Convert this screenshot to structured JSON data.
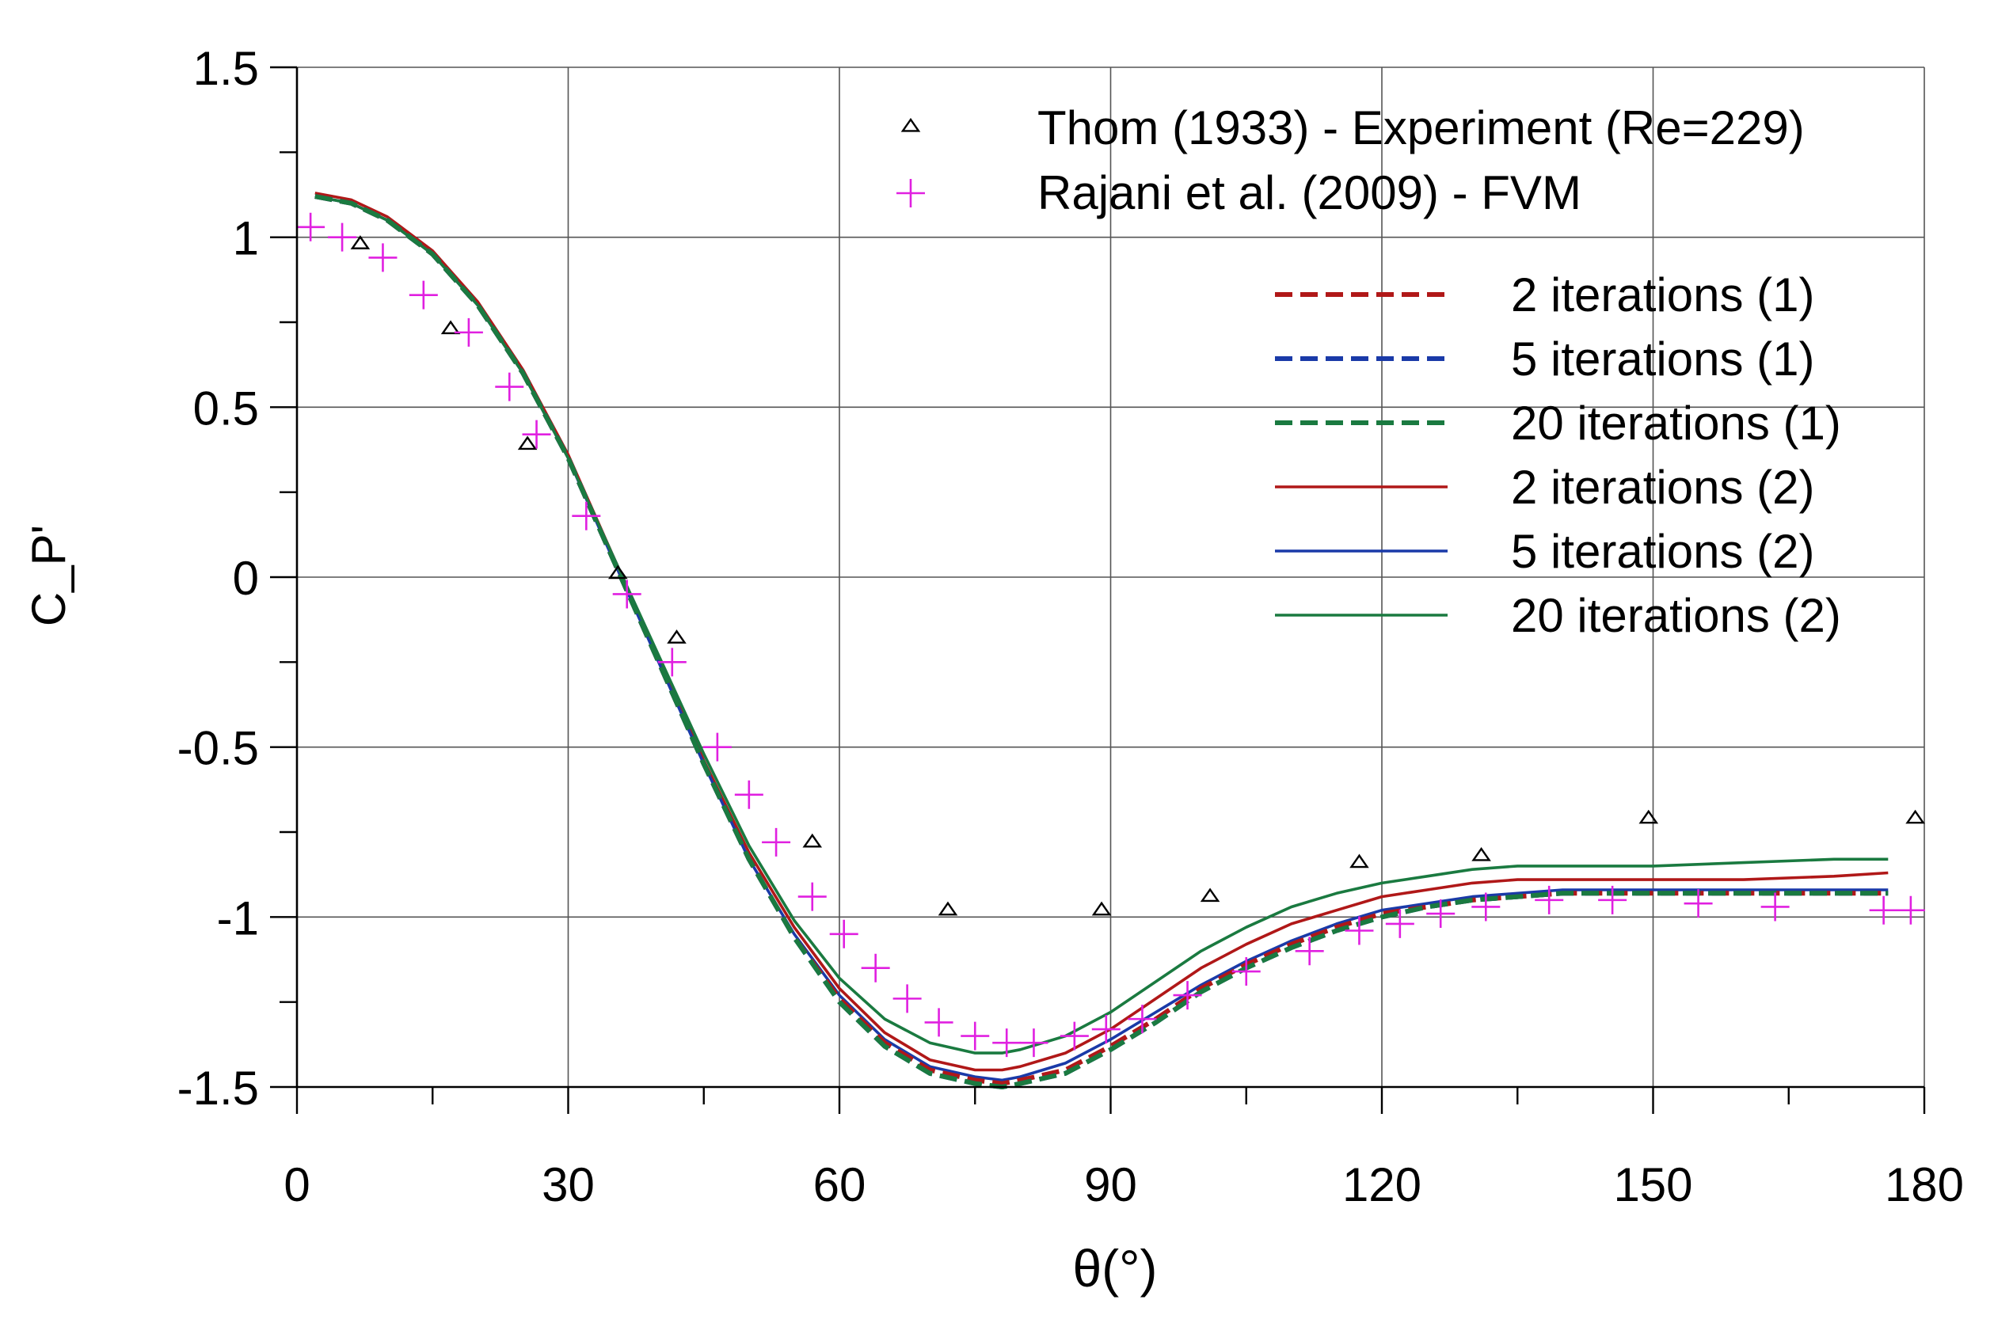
{
  "chart_data": {
    "type": "line",
    "title": "",
    "xlabel": "θ(°)",
    "ylabel": "C_P'",
    "xlim": [
      0,
      180
    ],
    "ylim": [
      -1.5,
      1.5
    ],
    "xticks": [
      0,
      30,
      60,
      90,
      120,
      150,
      180
    ],
    "yticks": [
      1.5,
      1,
      0.5,
      0,
      -0.5,
      -1,
      -1.5
    ],
    "xtick_labels": [
      "0",
      "30",
      "60",
      "90",
      "120",
      "150",
      "180"
    ],
    "ytick_labels": [
      "1.5",
      "1",
      "0.5",
      "0",
      "-0.5",
      "-1",
      "-1.5"
    ],
    "grid": true,
    "legend_location": "top-right",
    "series": [
      {
        "name": "Thom (1933) - Experiment (Re=229)",
        "kind": "marker",
        "marker": "triangle",
        "color": "#000000",
        "x": [
          7,
          17,
          25.5,
          35.5,
          42,
          57,
          72,
          89,
          101,
          117.5,
          131,
          149.5,
          179
        ],
        "y": [
          0.98,
          0.73,
          0.39,
          0.01,
          -0.18,
          -0.78,
          -0.98,
          -0.98,
          -0.94,
          -0.84,
          -0.82,
          -0.71,
          -0.71
        ]
      },
      {
        "name": "Rajani et al. (2009) - FVM",
        "kind": "marker",
        "marker": "plus",
        "color": "#e020e0",
        "x": [
          1.5,
          5,
          9.5,
          14,
          19,
          23.5,
          26.5,
          32,
          36.5,
          41.5,
          46.5,
          50,
          53,
          57,
          60.5,
          64,
          67.5,
          71,
          75,
          78.5,
          81.5,
          86,
          89.5,
          93.5,
          98.5,
          105,
          112,
          117.5,
          122,
          126.5,
          131.5,
          138.5,
          145.5,
          155,
          163.5,
          175.5,
          178.5
        ],
        "y": [
          1.03,
          1.0,
          0.94,
          0.83,
          0.72,
          0.56,
          0.42,
          0.18,
          -0.05,
          -0.25,
          -0.5,
          -0.64,
          -0.78,
          -0.94,
          -1.05,
          -1.15,
          -1.24,
          -1.31,
          -1.35,
          -1.37,
          -1.37,
          -1.35,
          -1.33,
          -1.3,
          -1.23,
          -1.16,
          -1.1,
          -1.04,
          -1.02,
          -0.99,
          -0.97,
          -0.95,
          -0.95,
          -0.96,
          -0.97,
          -0.98,
          -0.98
        ]
      },
      {
        "name": "2 iterations (1)",
        "kind": "line",
        "dash": true,
        "color": "#b01818",
        "x": [
          2,
          6,
          10,
          15,
          20,
          25,
          30,
          35,
          40,
          45,
          50,
          55,
          60,
          65,
          70,
          75,
          78,
          80,
          85,
          90,
          95,
          100,
          105,
          110,
          115,
          120,
          125,
          130,
          135,
          140,
          150,
          160,
          170,
          176
        ],
        "y": [
          1.12,
          1.1,
          1.05,
          0.95,
          0.8,
          0.6,
          0.35,
          0.05,
          -0.25,
          -0.55,
          -0.83,
          -1.06,
          -1.24,
          -1.37,
          -1.45,
          -1.48,
          -1.49,
          -1.48,
          -1.45,
          -1.38,
          -1.3,
          -1.21,
          -1.14,
          -1.08,
          -1.03,
          -0.99,
          -0.97,
          -0.95,
          -0.94,
          -0.93,
          -0.93,
          -0.93,
          -0.93,
          -0.93
        ]
      },
      {
        "name": "5 iterations (1)",
        "kind": "line",
        "dash": true,
        "color": "#1a3aa8",
        "x": [
          2,
          6,
          10,
          15,
          20,
          25,
          30,
          35,
          40,
          45,
          50,
          55,
          60,
          65,
          70,
          75,
          78,
          80,
          85,
          90,
          95,
          100,
          105,
          110,
          115,
          120,
          125,
          130,
          135,
          140,
          150,
          160,
          170,
          176
        ],
        "y": [
          1.12,
          1.1,
          1.05,
          0.95,
          0.8,
          0.6,
          0.35,
          0.05,
          -0.25,
          -0.55,
          -0.83,
          -1.06,
          -1.25,
          -1.38,
          -1.46,
          -1.49,
          -1.5,
          -1.49,
          -1.46,
          -1.39,
          -1.31,
          -1.22,
          -1.15,
          -1.09,
          -1.04,
          -1.0,
          -0.97,
          -0.95,
          -0.94,
          -0.93,
          -0.93,
          -0.93,
          -0.93,
          -0.93
        ]
      },
      {
        "name": "20 iterations (1)",
        "kind": "line",
        "dash": true,
        "color": "#1a7a40",
        "x": [
          2,
          6,
          10,
          15,
          20,
          25,
          30,
          35,
          40,
          45,
          50,
          55,
          60,
          65,
          70,
          75,
          78,
          80,
          85,
          90,
          95,
          100,
          105,
          110,
          115,
          120,
          125,
          130,
          135,
          140,
          150,
          160,
          170,
          176
        ],
        "y": [
          1.12,
          1.1,
          1.05,
          0.95,
          0.8,
          0.6,
          0.35,
          0.05,
          -0.25,
          -0.55,
          -0.83,
          -1.06,
          -1.25,
          -1.38,
          -1.46,
          -1.49,
          -1.5,
          -1.49,
          -1.46,
          -1.39,
          -1.31,
          -1.22,
          -1.15,
          -1.09,
          -1.04,
          -1.0,
          -0.97,
          -0.95,
          -0.94,
          -0.93,
          -0.93,
          -0.93,
          -0.93,
          -0.93
        ]
      },
      {
        "name": "2 iterations (2)",
        "kind": "line",
        "dash": false,
        "color": "#b01818",
        "x": [
          2,
          6,
          10,
          15,
          20,
          25,
          30,
          35,
          40,
          45,
          50,
          55,
          60,
          65,
          70,
          75,
          78,
          80,
          85,
          90,
          95,
          100,
          105,
          110,
          115,
          120,
          125,
          130,
          135,
          140,
          150,
          160,
          170,
          176
        ],
        "y": [
          1.13,
          1.11,
          1.06,
          0.96,
          0.81,
          0.61,
          0.36,
          0.06,
          -0.24,
          -0.54,
          -0.81,
          -1.03,
          -1.21,
          -1.34,
          -1.42,
          -1.45,
          -1.45,
          -1.44,
          -1.4,
          -1.33,
          -1.24,
          -1.15,
          -1.08,
          -1.02,
          -0.98,
          -0.94,
          -0.92,
          -0.9,
          -0.89,
          -0.89,
          -0.89,
          -0.89,
          -0.88,
          -0.87
        ]
      },
      {
        "name": "5 iterations (2)",
        "kind": "line",
        "dash": false,
        "color": "#1a3aa8",
        "x": [
          2,
          6,
          10,
          15,
          20,
          25,
          30,
          35,
          40,
          45,
          50,
          55,
          60,
          65,
          70,
          75,
          78,
          80,
          85,
          90,
          95,
          100,
          105,
          110,
          115,
          120,
          125,
          130,
          135,
          140,
          150,
          160,
          170,
          176
        ],
        "y": [
          1.12,
          1.1,
          1.05,
          0.95,
          0.8,
          0.6,
          0.35,
          0.05,
          -0.25,
          -0.55,
          -0.83,
          -1.05,
          -1.23,
          -1.36,
          -1.44,
          -1.47,
          -1.48,
          -1.47,
          -1.43,
          -1.36,
          -1.28,
          -1.2,
          -1.13,
          -1.07,
          -1.02,
          -0.98,
          -0.96,
          -0.94,
          -0.93,
          -0.92,
          -0.92,
          -0.92,
          -0.92,
          -0.92
        ]
      },
      {
        "name": "20 iterations (2)",
        "kind": "line",
        "dash": false,
        "color": "#1a7a40",
        "x": [
          2,
          6,
          10,
          15,
          20,
          25,
          30,
          35,
          40,
          45,
          50,
          55,
          60,
          65,
          70,
          75,
          78,
          80,
          85,
          90,
          95,
          100,
          105,
          110,
          115,
          120,
          125,
          130,
          135,
          140,
          150,
          160,
          170,
          176
        ],
        "y": [
          1.12,
          1.1,
          1.05,
          0.95,
          0.8,
          0.6,
          0.35,
          0.06,
          -0.23,
          -0.52,
          -0.79,
          -1.01,
          -1.18,
          -1.3,
          -1.37,
          -1.4,
          -1.4,
          -1.39,
          -1.35,
          -1.28,
          -1.19,
          -1.1,
          -1.03,
          -0.97,
          -0.93,
          -0.9,
          -0.88,
          -0.86,
          -0.85,
          -0.85,
          -0.85,
          -0.84,
          -0.83,
          -0.83
        ]
      }
    ]
  }
}
